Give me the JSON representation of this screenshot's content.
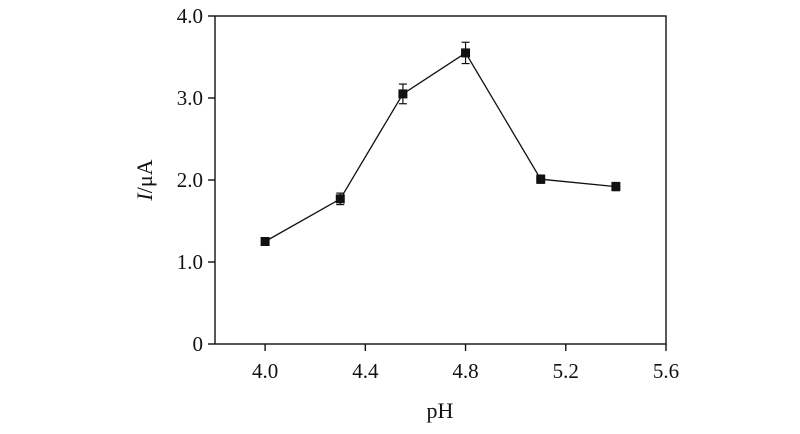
{
  "chart_data": {
    "type": "line",
    "title": "",
    "xlabel": "pH",
    "ylabel_italic": "I",
    "ylabel_rest": "/μA",
    "xlim": [
      3.8,
      5.6
    ],
    "ylim": [
      0,
      4.0
    ],
    "x_ticks": [
      {
        "value": 4.0,
        "label": "4.0"
      },
      {
        "value": 4.4,
        "label": "4.4"
      },
      {
        "value": 4.8,
        "label": "4.8"
      },
      {
        "value": 5.2,
        "label": "5.2"
      },
      {
        "value": 5.6,
        "label": "5.6"
      }
    ],
    "y_ticks": [
      {
        "value": 0,
        "label": "0"
      },
      {
        "value": 1.0,
        "label": "1.0"
      },
      {
        "value": 2.0,
        "label": "2.0"
      },
      {
        "value": 3.0,
        "label": "3.0"
      },
      {
        "value": 4.0,
        "label": "4.0"
      }
    ],
    "grid": false,
    "series": [
      {
        "x": [
          4.0,
          4.3,
          4.55,
          4.8,
          5.1,
          5.4
        ],
        "y": [
          1.25,
          1.77,
          3.05,
          3.55,
          2.01,
          1.92
        ],
        "error": [
          0.04,
          0.07,
          0.12,
          0.13,
          0.05,
          0.05
        ],
        "marker": "square",
        "color": "#111111"
      }
    ]
  }
}
